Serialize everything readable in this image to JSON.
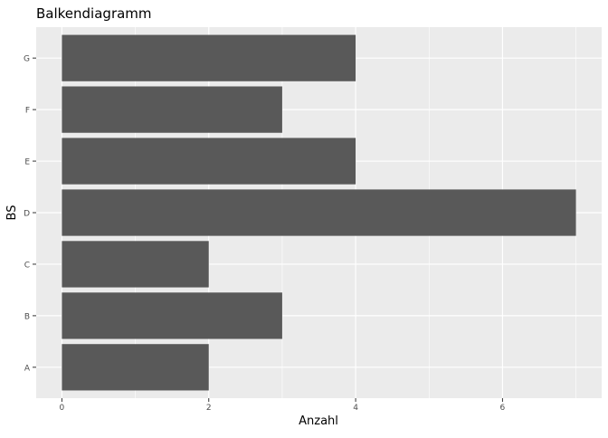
{
  "chart_data": {
    "type": "bar",
    "orientation": "horizontal",
    "title": "Balkendiagramm",
    "xlabel": "Anzahl",
    "ylabel": "BS",
    "categories": [
      "A",
      "B",
      "C",
      "D",
      "E",
      "F",
      "G"
    ],
    "values": [
      2,
      3,
      2,
      7,
      4,
      3,
      4
    ],
    "xlim": [
      -0.35,
      7.35
    ],
    "xticks": [
      0,
      2,
      4,
      6
    ],
    "grid": true,
    "colors": {
      "bar": "#595959",
      "panel": "#ebebeb",
      "grid": "#ffffff"
    }
  }
}
